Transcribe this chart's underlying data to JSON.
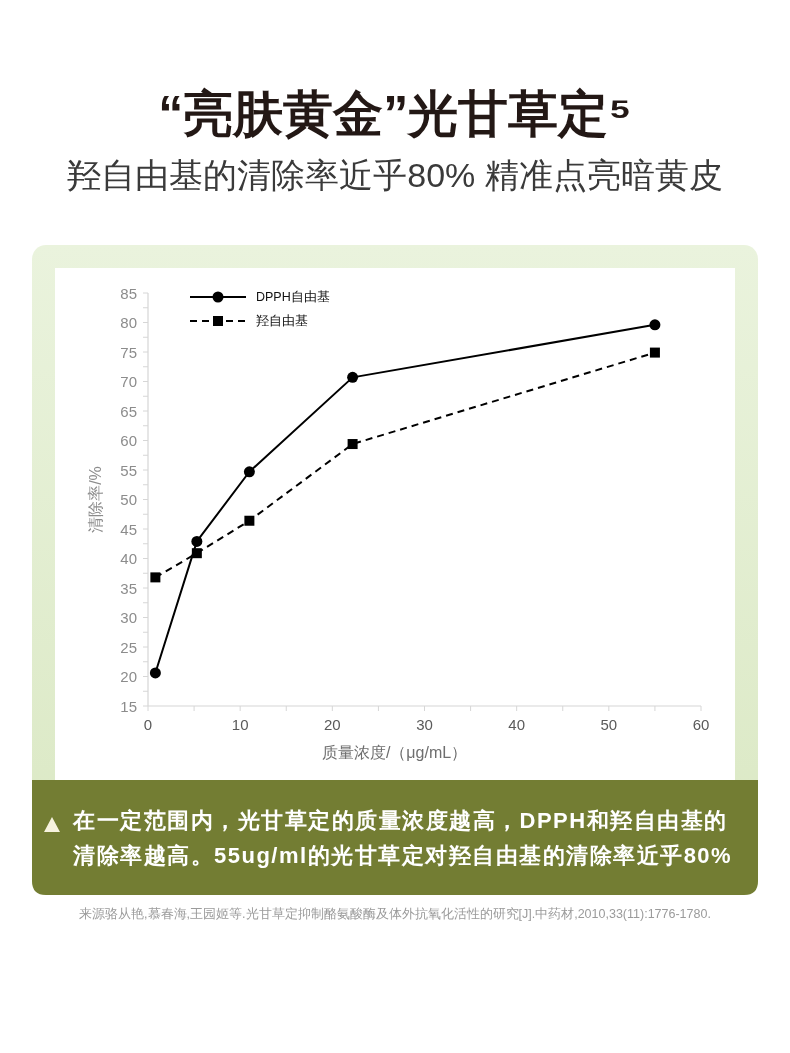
{
  "chart_data": {
    "type": "line",
    "title": "“亮肤黄金”光甘草定⁵",
    "subtitle": "羟自由基的清除率近乎80% 精准点亮暗黄皮",
    "xlabel": "质量浓度/（μg/mL）",
    "ylabel": "清除率/%",
    "x": [
      0.8,
      5.3,
      11,
      22.2,
      55
    ],
    "series": [
      {
        "name": "DPPH自由基",
        "color": "#000000",
        "marker": "circle",
        "line_style": "solid",
        "values": [
          20.6,
          42.9,
          54.7,
          70.7,
          79.6
        ]
      },
      {
        "name": "羟自由基",
        "color": "#000000",
        "marker": "square",
        "line_style": "dashed",
        "values": [
          36.8,
          40.9,
          46.4,
          59.4,
          74.9
        ]
      }
    ],
    "xlim": [
      0,
      60
    ],
    "xticks": [
      0,
      {
        "value": 5,
        "label": null
      },
      10,
      {
        "value": 15,
        "label": null
      },
      20,
      {
        "value": 25,
        "label": null
      },
      30,
      {
        "value": 35,
        "label": null
      },
      40,
      {
        "value": 45,
        "label": null
      },
      50,
      {
        "value": 55,
        "label": null
      },
      60
    ],
    "ylim": [
      15,
      85
    ],
    "yticks": [
      15,
      {
        "value": 17.5,
        "label": null
      },
      20,
      {
        "value": 22.5,
        "label": null
      },
      25,
      {
        "value": 27.5,
        "label": null
      },
      30,
      {
        "value": 32.5,
        "label": null
      },
      35,
      {
        "value": 37.5,
        "label": null
      },
      40,
      {
        "value": 42.5,
        "label": null
      },
      45,
      {
        "value": 47.5,
        "label": null
      },
      50,
      {
        "value": 52.5,
        "label": null
      },
      55,
      {
        "value": 57.5,
        "label": null
      },
      60,
      {
        "value": 62.5,
        "label": null
      },
      65,
      {
        "value": 67.5,
        "label": null
      },
      70,
      {
        "value": 72.5,
        "label": null
      },
      75,
      {
        "value": 77.5,
        "label": null
      },
      80,
      {
        "value": 82.5,
        "label": null
      },
      85
    ],
    "grid": false,
    "legend": "top left",
    "annotations": [
      "在一定范围内，光甘草定的质量浓度越高，DPPH和羟自由基的清除率越高。55ug/ml的光甘草定对羟自由基的清除率近乎80%",
      "来源骆从艳,慕春海,王园姬等.光甘草定抑制酪氨酸酶及体外抗氧化活性的研究[J].中药材,2010,33(11):1776-1780."
    ]
  }
}
